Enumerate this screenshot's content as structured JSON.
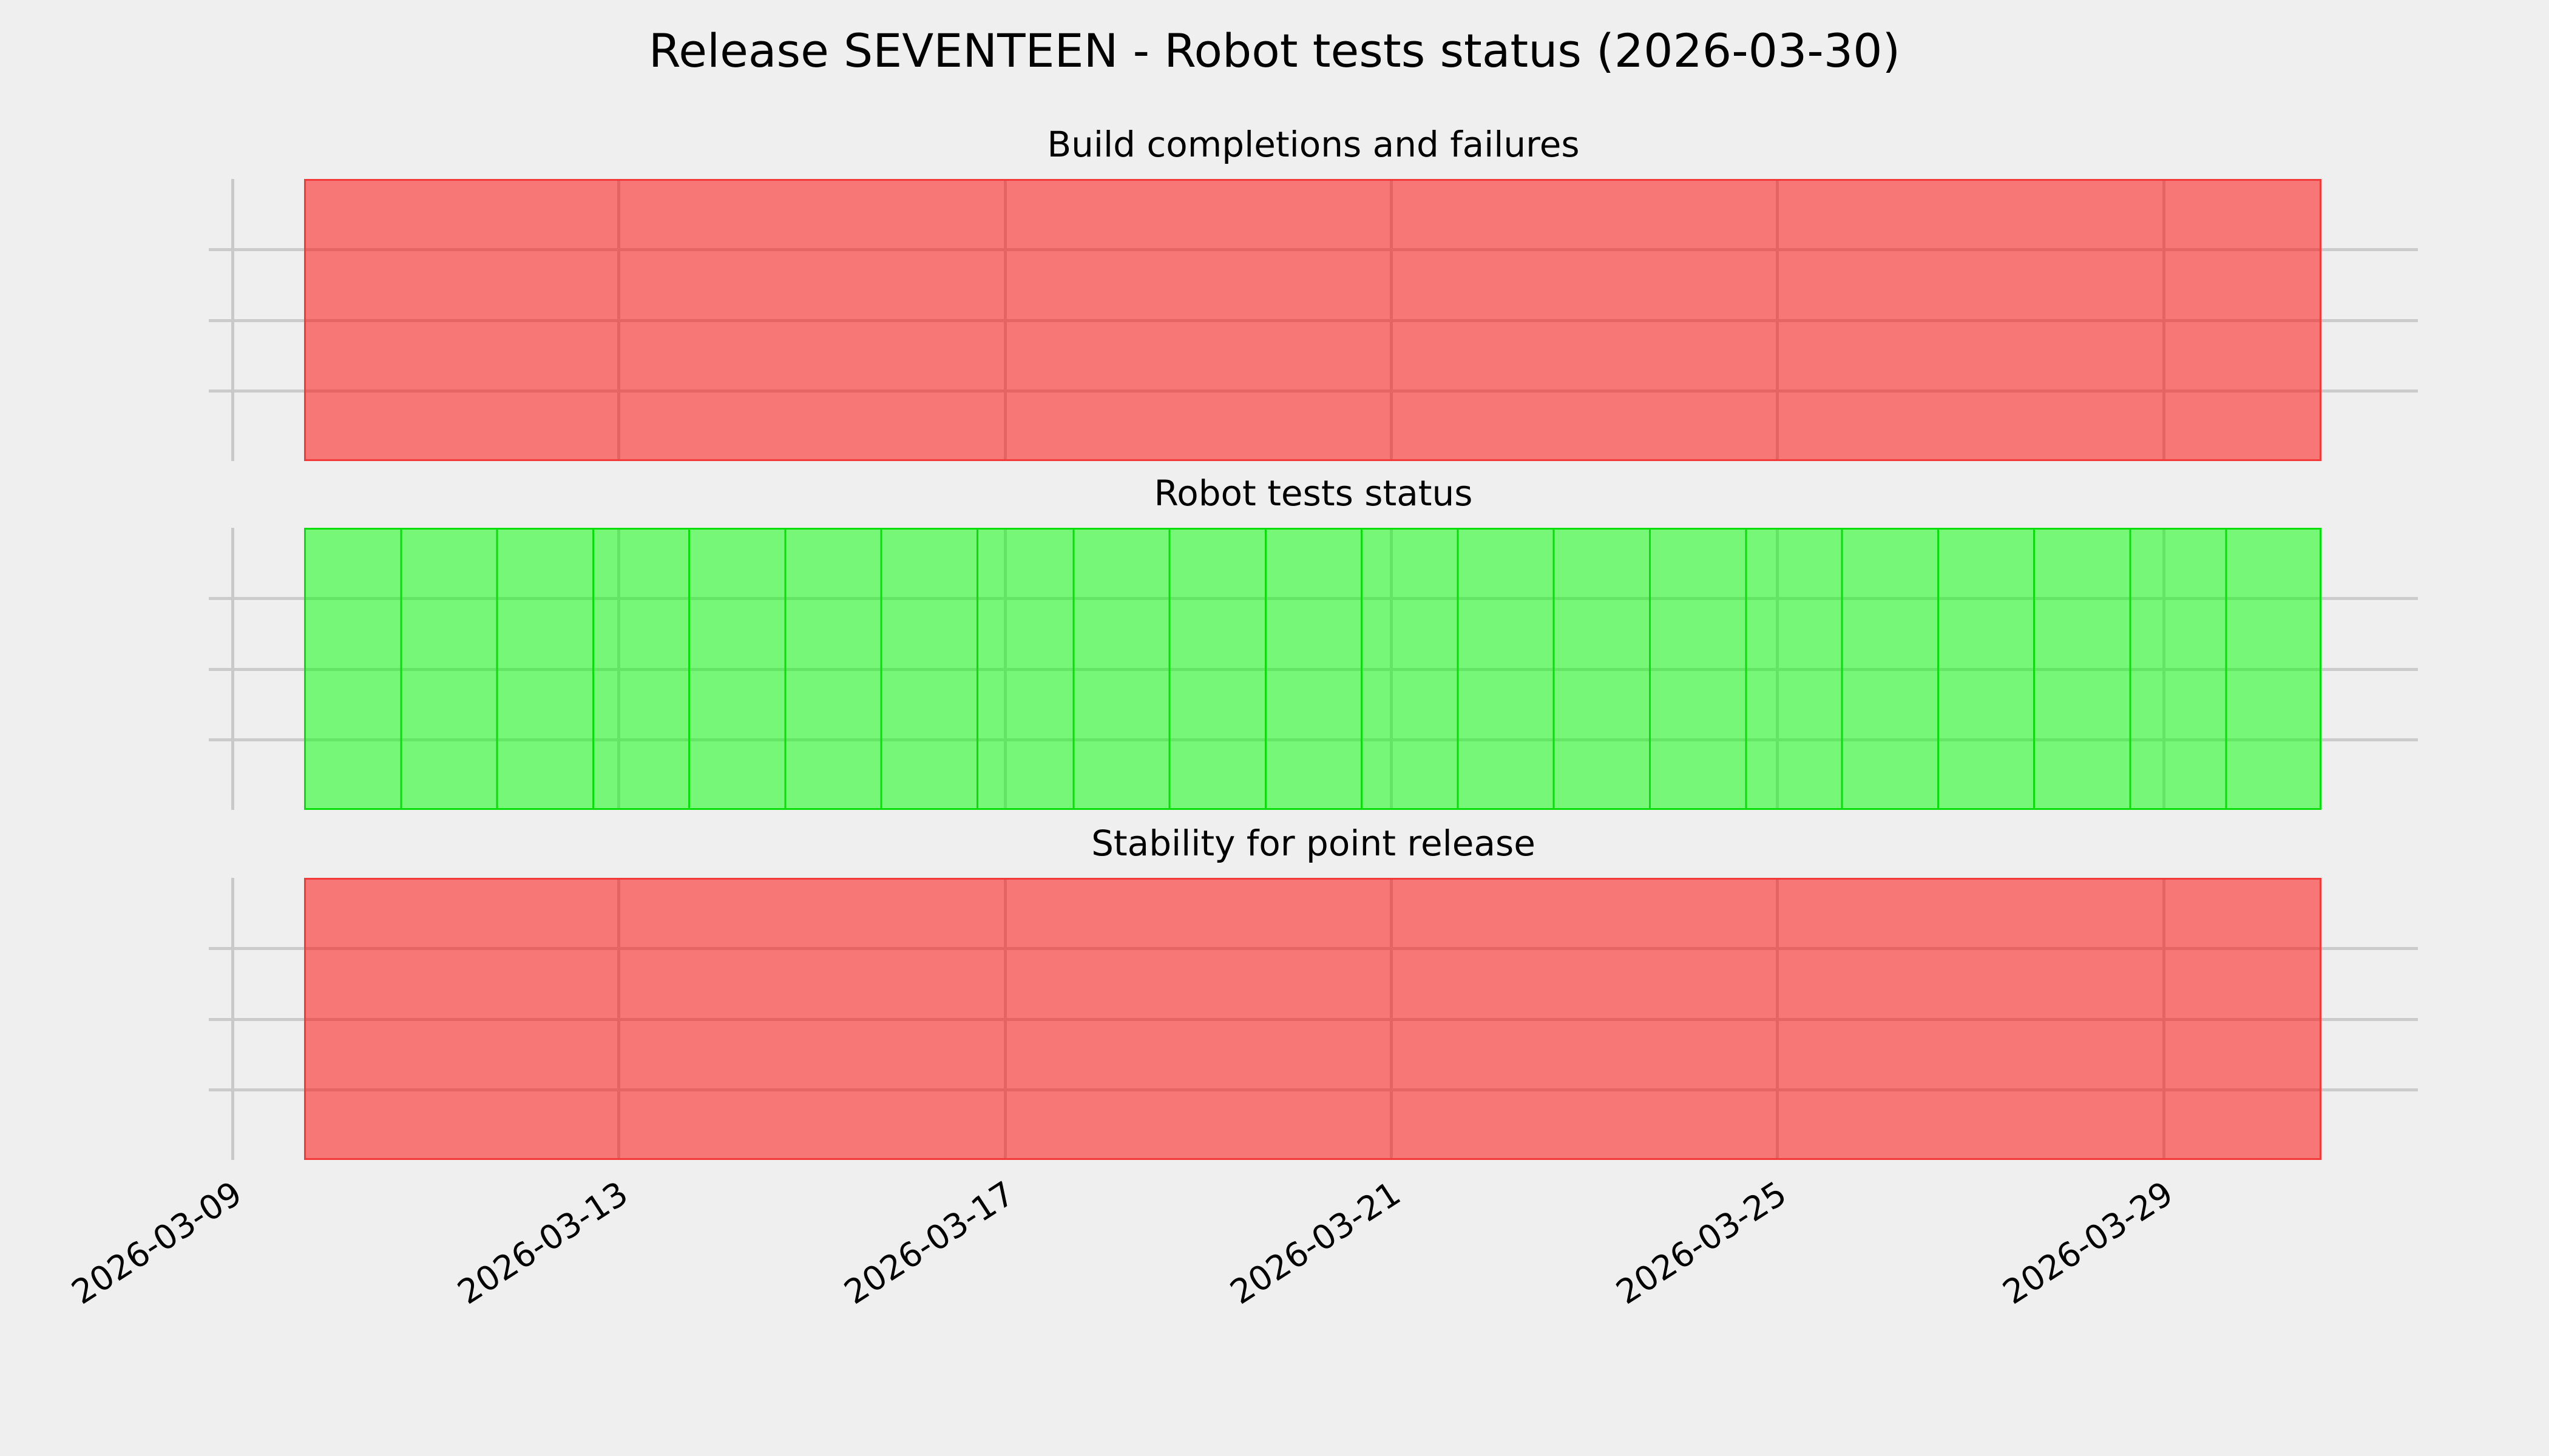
{
  "figure": {
    "title": "Release SEVENTEEN - Robot tests status (2026-03-30)",
    "background": "#efefef",
    "text_color": "#000000"
  },
  "colors": {
    "grid": "#cbcbcb",
    "fail_fill": "rgba(255,0,0,0.5)",
    "fail_edge": "#f23a3a",
    "pass_fill": "rgba(0,255,0,0.5)",
    "pass_edge": "#0ade0a"
  },
  "x_axis": {
    "tick_labels": [
      "2026-03-09",
      "2026-03-13",
      "2026-03-17",
      "2026-03-21",
      "2026-03-25",
      "2026-03-29"
    ],
    "tick_interval_days": 4,
    "label_rotation_deg": 33,
    "data_start": "2026-03-10",
    "data_end": "2026-03-30"
  },
  "chart_data": [
    {
      "type": "bar",
      "title": "Build completions and failures",
      "status": "fail",
      "fill": "rgba(255,0,0,0.5)",
      "edge": "#f23a3a",
      "show_day_edges": false,
      "ylim": [
        0,
        1
      ],
      "yticks": [
        0.25,
        0.5,
        0.75
      ],
      "grid": true,
      "dates": [
        "2026-03-10",
        "2026-03-11",
        "2026-03-12",
        "2026-03-13",
        "2026-03-14",
        "2026-03-15",
        "2026-03-16",
        "2026-03-17",
        "2026-03-18",
        "2026-03-19",
        "2026-03-20",
        "2026-03-21",
        "2026-03-22",
        "2026-03-23",
        "2026-03-24",
        "2026-03-25",
        "2026-03-26",
        "2026-03-27",
        "2026-03-28",
        "2026-03-29",
        "2026-03-30"
      ],
      "values": [
        1,
        1,
        1,
        1,
        1,
        1,
        1,
        1,
        1,
        1,
        1,
        1,
        1,
        1,
        1,
        1,
        1,
        1,
        1,
        1,
        1
      ],
      "statuses": [
        "fail",
        "fail",
        "fail",
        "fail",
        "fail",
        "fail",
        "fail",
        "fail",
        "fail",
        "fail",
        "fail",
        "fail",
        "fail",
        "fail",
        "fail",
        "fail",
        "fail",
        "fail",
        "fail",
        "fail",
        "fail"
      ]
    },
    {
      "type": "bar",
      "title": "Robot tests status",
      "status": "pass",
      "fill": "rgba(0,255,0,0.5)",
      "edge": "#0ade0a",
      "show_day_edges": true,
      "ylim": [
        0,
        1
      ],
      "yticks": [
        0.25,
        0.5,
        0.75
      ],
      "grid": true,
      "dates": [
        "2026-03-10",
        "2026-03-11",
        "2026-03-12",
        "2026-03-13",
        "2026-03-14",
        "2026-03-15",
        "2026-03-16",
        "2026-03-17",
        "2026-03-18",
        "2026-03-19",
        "2026-03-20",
        "2026-03-21",
        "2026-03-22",
        "2026-03-23",
        "2026-03-24",
        "2026-03-25",
        "2026-03-26",
        "2026-03-27",
        "2026-03-28",
        "2026-03-29",
        "2026-03-30"
      ],
      "values": [
        1,
        1,
        1,
        1,
        1,
        1,
        1,
        1,
        1,
        1,
        1,
        1,
        1,
        1,
        1,
        1,
        1,
        1,
        1,
        1,
        1
      ],
      "statuses": [
        "pass",
        "pass",
        "pass",
        "pass",
        "pass",
        "pass",
        "pass",
        "pass",
        "pass",
        "pass",
        "pass",
        "pass",
        "pass",
        "pass",
        "pass",
        "pass",
        "pass",
        "pass",
        "pass",
        "pass",
        "pass"
      ]
    },
    {
      "type": "bar",
      "title": "Stability for point release",
      "status": "fail",
      "fill": "rgba(255,0,0,0.5)",
      "edge": "#f23a3a",
      "show_day_edges": false,
      "ylim": [
        0,
        1
      ],
      "yticks": [
        0.25,
        0.5,
        0.75
      ],
      "grid": true,
      "dates": [
        "2026-03-10",
        "2026-03-11",
        "2026-03-12",
        "2026-03-13",
        "2026-03-14",
        "2026-03-15",
        "2026-03-16",
        "2026-03-17",
        "2026-03-18",
        "2026-03-19",
        "2026-03-20",
        "2026-03-21",
        "2026-03-22",
        "2026-03-23",
        "2026-03-24",
        "2026-03-25",
        "2026-03-26",
        "2026-03-27",
        "2026-03-28",
        "2026-03-29",
        "2026-03-30"
      ],
      "values": [
        1,
        1,
        1,
        1,
        1,
        1,
        1,
        1,
        1,
        1,
        1,
        1,
        1,
        1,
        1,
        1,
        1,
        1,
        1,
        1,
        1
      ],
      "statuses": [
        "fail",
        "fail",
        "fail",
        "fail",
        "fail",
        "fail",
        "fail",
        "fail",
        "fail",
        "fail",
        "fail",
        "fail",
        "fail",
        "fail",
        "fail",
        "fail",
        "fail",
        "fail",
        "fail",
        "fail",
        "fail"
      ]
    }
  ]
}
